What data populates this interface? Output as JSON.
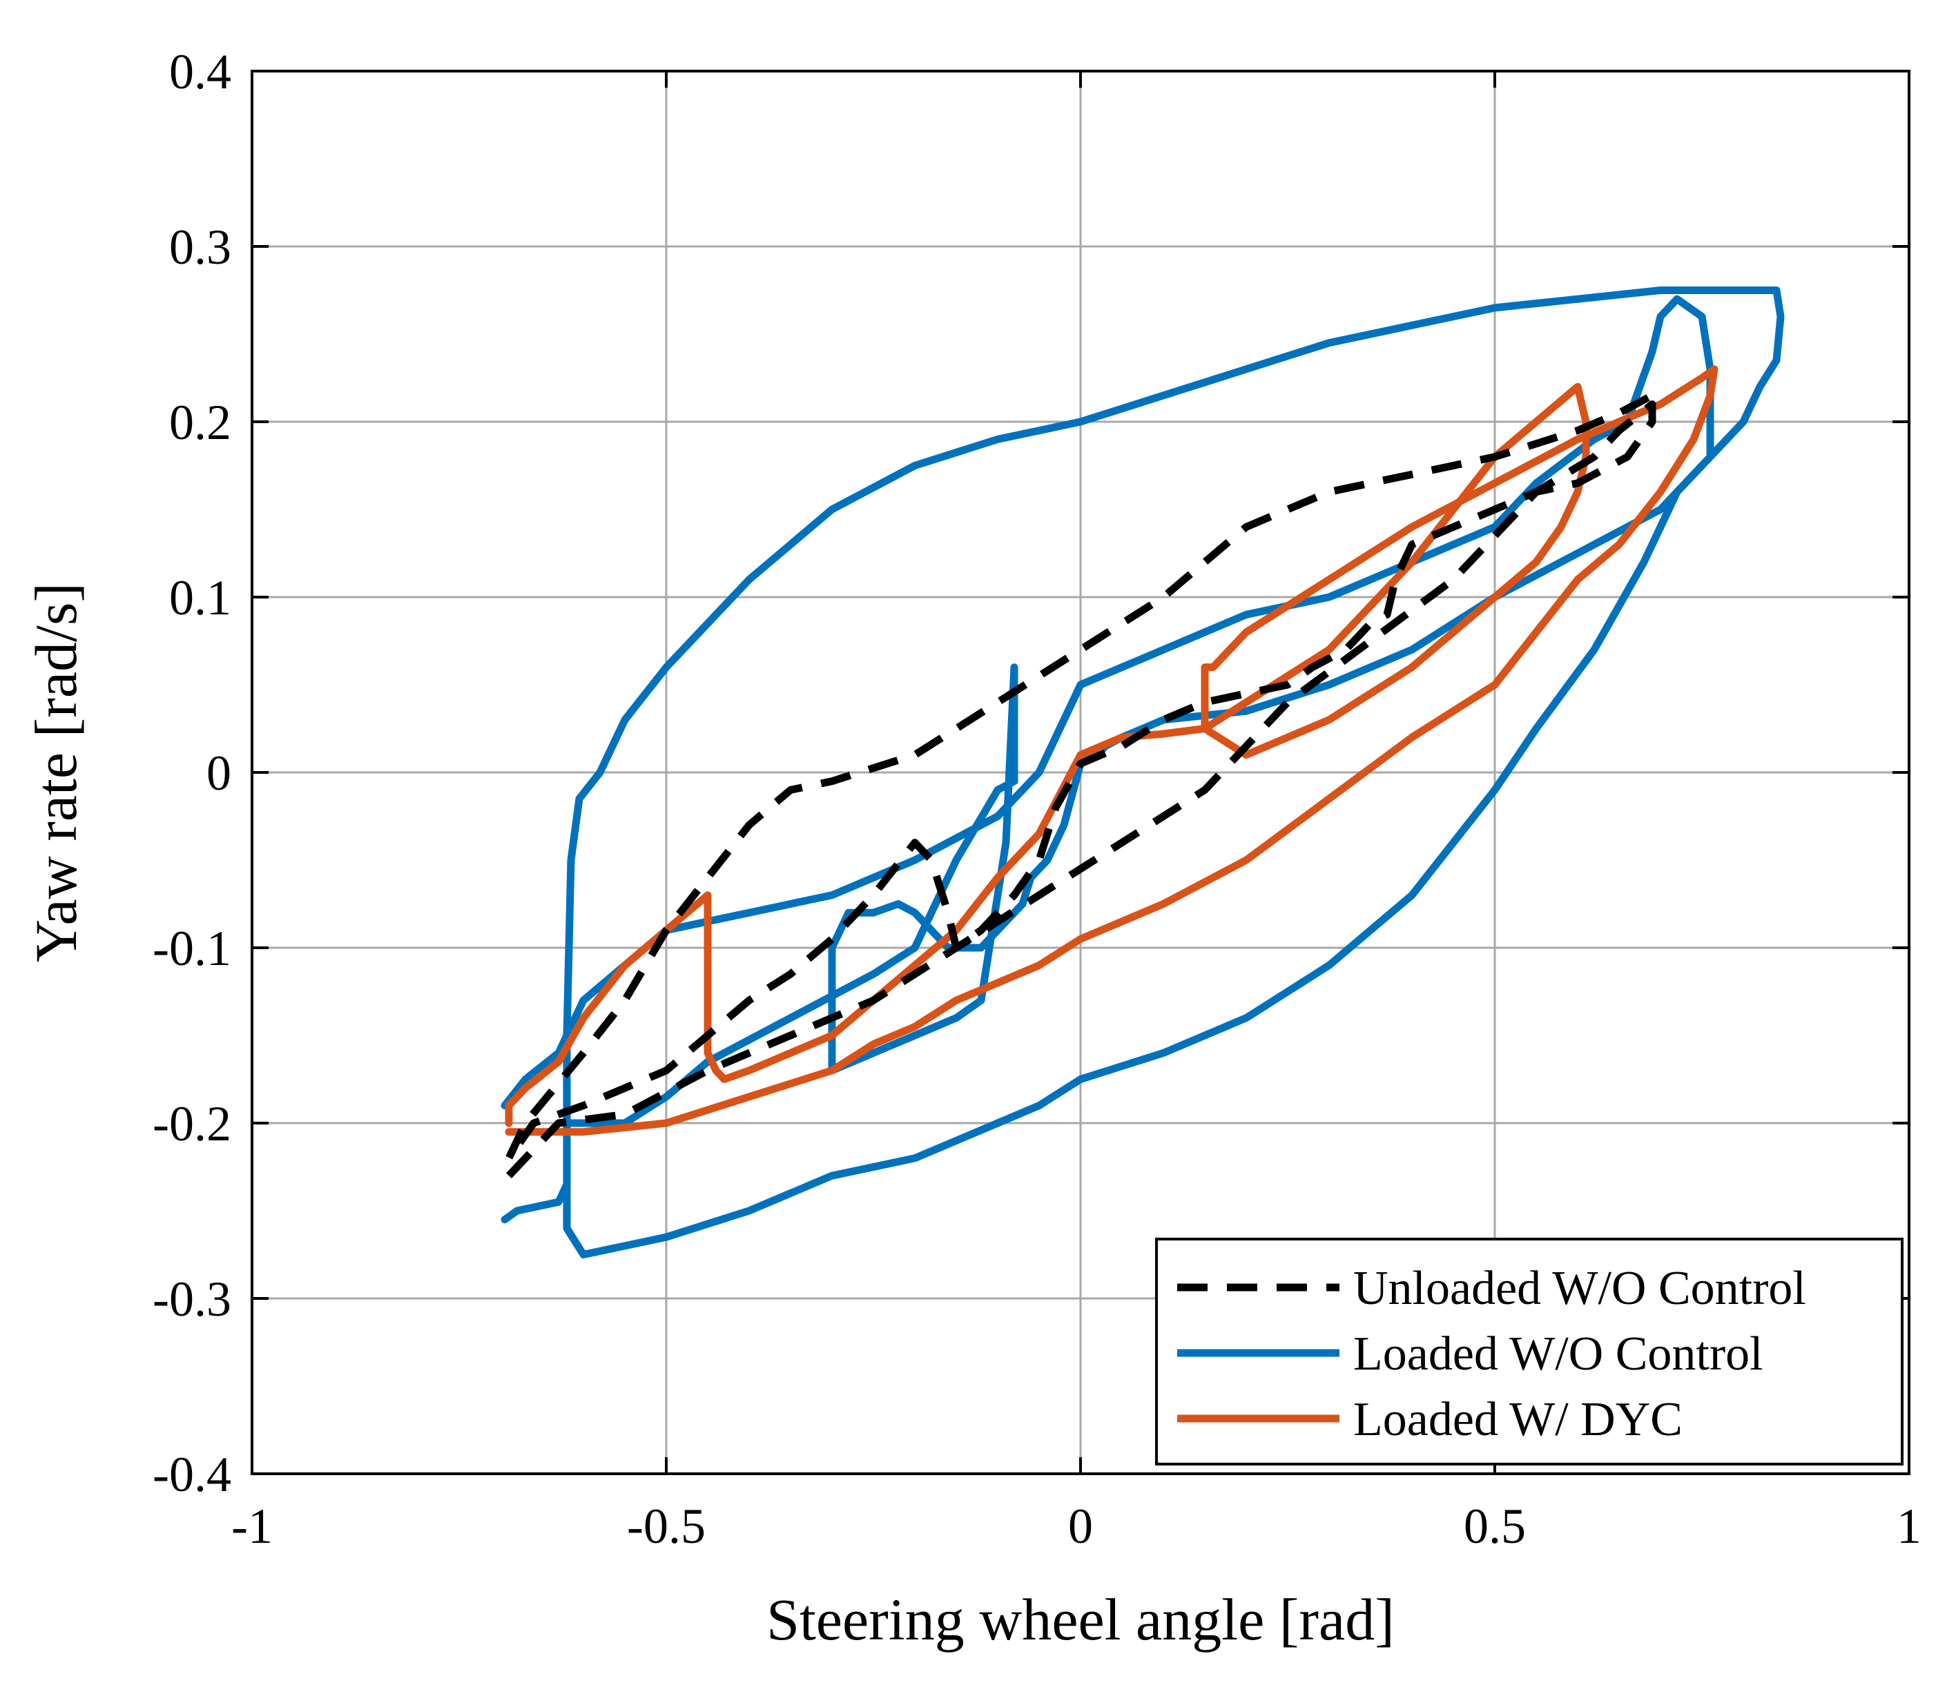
{
  "chart_data": {
    "type": "line",
    "title": "",
    "xlabel": "Steering wheel angle [rad]",
    "ylabel": "Yaw rate [rad/s]",
    "xlim": [
      -1,
      1
    ],
    "ylim": [
      -0.4,
      0.4
    ],
    "grid": true,
    "legend_position": "bottom-right",
    "x_ticks": [
      -1,
      -0.5,
      0,
      0.5,
      1
    ],
    "x_tick_labels": [
      "-1",
      "-0.5",
      "0",
      "0.5",
      "1"
    ],
    "y_ticks": [
      -0.4,
      -0.3,
      -0.2,
      -0.1,
      0,
      0.1,
      0.2,
      0.3,
      0.4
    ],
    "y_tick_labels": [
      "-0.4",
      "-0.3",
      "-0.2",
      "-0.1",
      "0",
      "0.1",
      "0.2",
      "0.3",
      "0.4"
    ],
    "series": [
      {
        "name": "Unloaded W/O Control",
        "color": "#000000",
        "style": "dashed",
        "x": [
          -0.69,
          -0.63,
          -0.55,
          -0.45,
          -0.35,
          -0.25,
          -0.15,
          -0.05,
          0.05,
          0.15,
          0.25,
          0.35,
          0.45,
          0.55,
          0.62,
          0.65,
          0.69,
          0.69,
          0.66,
          0.6,
          0.55,
          0.5,
          0.45,
          0.4,
          0.38,
          0.37,
          0.35,
          0.32,
          0.28,
          0.25,
          0.2,
          0.15,
          0.1,
          0.05,
          0.0,
          -0.03,
          -0.05,
          -0.08,
          -0.12,
          -0.15,
          -0.16,
          -0.18,
          -0.2,
          -0.25,
          -0.3,
          -0.35,
          -0.4,
          -0.45,
          -0.5,
          -0.55,
          -0.6,
          -0.63,
          -0.66,
          -0.69,
          -0.67,
          -0.6,
          -0.55,
          -0.5,
          -0.45,
          -0.4,
          -0.35,
          -0.3,
          -0.2,
          -0.1,
          0.0,
          0.1,
          0.15,
          0.2,
          0.3,
          0.4,
          0.5,
          0.6,
          0.65,
          0.69
        ],
        "y": [
          -0.23,
          -0.2,
          -0.195,
          -0.17,
          -0.15,
          -0.13,
          -0.1,
          -0.07,
          -0.04,
          -0.01,
          0.04,
          0.075,
          0.11,
          0.16,
          0.18,
          0.195,
          0.21,
          0.2,
          0.18,
          0.165,
          0.16,
          0.15,
          0.14,
          0.13,
          0.11,
          0.09,
          0.085,
          0.07,
          0.06,
          0.05,
          0.045,
          0.04,
          0.03,
          0.015,
          0.005,
          -0.02,
          -0.05,
          -0.07,
          -0.09,
          -0.1,
          -0.08,
          -0.05,
          -0.04,
          -0.07,
          -0.095,
          -0.115,
          -0.13,
          -0.15,
          -0.17,
          -0.18,
          -0.19,
          -0.195,
          -0.2,
          -0.22,
          -0.2,
          -0.16,
          -0.13,
          -0.09,
          -0.06,
          -0.03,
          -0.01,
          -0.005,
          0.01,
          0.04,
          0.07,
          0.1,
          0.12,
          0.14,
          0.16,
          0.17,
          0.18,
          0.195,
          0.205,
          0.215
        ]
      },
      {
        "name": "Loaded W/O Control",
        "color": "#0072BD",
        "style": "solid",
        "x": [
          -0.695,
          -0.68,
          -0.63,
          -0.62,
          -0.62,
          -0.615,
          -0.605,
          -0.58,
          -0.55,
          -0.5,
          -0.4,
          -0.3,
          -0.2,
          -0.1,
          0.0,
          0.1,
          0.2,
          0.3,
          0.4,
          0.5,
          0.6,
          0.7,
          0.77,
          0.84,
          0.845,
          0.84,
          0.82,
          0.8,
          0.76,
          0.72,
          0.68,
          0.62,
          0.55,
          0.5,
          0.45,
          0.4,
          0.3,
          0.2,
          0.1,
          0.0,
          -0.05,
          -0.1,
          -0.15,
          -0.2,
          -0.3,
          -0.4,
          -0.5,
          -0.6,
          -0.62,
          -0.62,
          -0.6,
          -0.55,
          -0.5,
          -0.45,
          -0.35,
          -0.25,
          -0.2,
          -0.15,
          -0.1,
          -0.08,
          -0.08,
          -0.08,
          -0.09,
          -0.12,
          -0.15,
          -0.2,
          -0.25,
          -0.3,
          -0.3,
          -0.28,
          -0.25,
          -0.22,
          -0.2,
          -0.18,
          -0.16,
          -0.15,
          -0.12,
          -0.08,
          -0.07,
          -0.06,
          -0.04,
          -0.02,
          0.0,
          0.02,
          0.03,
          0.05,
          0.1,
          0.2,
          0.3,
          0.4,
          0.5,
          0.6,
          0.7,
          0.76,
          0.76,
          0.75,
          0.72,
          0.7,
          0.69,
          0.66,
          0.62,
          0.55,
          0.5,
          0.4,
          0.3,
          0.2,
          0.1,
          0.05,
          0.0,
          -0.05,
          -0.1,
          -0.2,
          -0.3,
          -0.4,
          -0.5,
          -0.55,
          -0.6,
          -0.62,
          -0.63,
          -0.67,
          -0.695
        ],
        "y": [
          -0.255,
          -0.25,
          -0.245,
          -0.235,
          -0.15,
          -0.05,
          -0.015,
          0.0,
          0.03,
          0.06,
          0.11,
          0.15,
          0.175,
          0.19,
          0.2,
          0.215,
          0.23,
          0.245,
          0.255,
          0.265,
          0.27,
          0.275,
          0.275,
          0.275,
          0.26,
          0.235,
          0.22,
          0.2,
          0.18,
          0.16,
          0.12,
          0.07,
          0.025,
          -0.01,
          -0.04,
          -0.07,
          -0.11,
          -0.14,
          -0.16,
          -0.175,
          -0.19,
          -0.2,
          -0.21,
          -0.22,
          -0.23,
          -0.25,
          -0.265,
          -0.275,
          -0.26,
          -0.2,
          -0.2,
          -0.2,
          -0.185,
          -0.165,
          -0.14,
          -0.115,
          -0.1,
          -0.05,
          -0.01,
          -0.005,
          0.03,
          0.06,
          -0.04,
          -0.13,
          -0.14,
          -0.15,
          -0.16,
          -0.17,
          -0.1,
          -0.08,
          -0.08,
          -0.075,
          -0.08,
          -0.09,
          -0.1,
          -0.1,
          -0.1,
          -0.08,
          -0.075,
          -0.06,
          -0.05,
          -0.03,
          0.005,
          0.01,
          0.015,
          0.02,
          0.03,
          0.035,
          0.05,
          0.07,
          0.1,
          0.125,
          0.15,
          0.18,
          0.23,
          0.26,
          0.27,
          0.26,
          0.24,
          0.2,
          0.19,
          0.165,
          0.14,
          0.12,
          0.1,
          0.09,
          0.07,
          0.06,
          0.05,
          0.0,
          -0.025,
          -0.05,
          -0.07,
          -0.08,
          -0.09,
          -0.11,
          -0.13,
          -0.15,
          -0.16,
          -0.175,
          -0.19
        ]
      },
      {
        "name": "Loaded W/ DYC",
        "color": "#D95319",
        "style": "solid",
        "x": [
          -0.69,
          -0.69,
          -0.67,
          -0.63,
          -0.6,
          -0.55,
          -0.5,
          -0.45,
          -0.45,
          -0.44,
          -0.43,
          -0.4,
          -0.35,
          -0.3,
          -0.25,
          -0.2,
          -0.15,
          -0.1,
          -0.05,
          0.0,
          0.05,
          0.1,
          0.15,
          0.2,
          0.25,
          0.3,
          0.35,
          0.4,
          0.45,
          0.5,
          0.55,
          0.6,
          0.61,
          0.61,
          0.6,
          0.58,
          0.55,
          0.5,
          0.45,
          0.4,
          0.35,
          0.3,
          0.25,
          0.2,
          0.15,
          0.15,
          0.16,
          0.2,
          0.3,
          0.4,
          0.5,
          0.6,
          0.7,
          0.75,
          0.765,
          0.76,
          0.74,
          0.7,
          0.65,
          0.6,
          0.55,
          0.5,
          0.4,
          0.3,
          0.2,
          0.1,
          0.0,
          -0.05,
          -0.1,
          -0.15,
          -0.2,
          -0.25,
          -0.3,
          -0.4,
          -0.5,
          -0.6,
          -0.69
        ],
        "y": [
          -0.2,
          -0.19,
          -0.18,
          -0.165,
          -0.14,
          -0.11,
          -0.09,
          -0.07,
          -0.16,
          -0.17,
          -0.175,
          -0.17,
          -0.16,
          -0.15,
          -0.13,
          -0.11,
          -0.09,
          -0.06,
          -0.035,
          0.01,
          0.02,
          0.022,
          0.025,
          0.04,
          0.055,
          0.07,
          0.095,
          0.12,
          0.15,
          0.18,
          0.2,
          0.22,
          0.2,
          0.18,
          0.16,
          0.14,
          0.12,
          0.1,
          0.08,
          0.06,
          0.045,
          0.03,
          0.02,
          0.01,
          0.025,
          0.06,
          0.06,
          0.08,
          0.11,
          0.14,
          0.165,
          0.19,
          0.21,
          0.225,
          0.23,
          0.215,
          0.19,
          0.16,
          0.13,
          0.11,
          0.08,
          0.05,
          0.02,
          -0.015,
          -0.05,
          -0.075,
          -0.095,
          -0.11,
          -0.12,
          -0.13,
          -0.145,
          -0.155,
          -0.17,
          -0.185,
          -0.2,
          -0.205,
          -0.205
        ]
      }
    ]
  }
}
